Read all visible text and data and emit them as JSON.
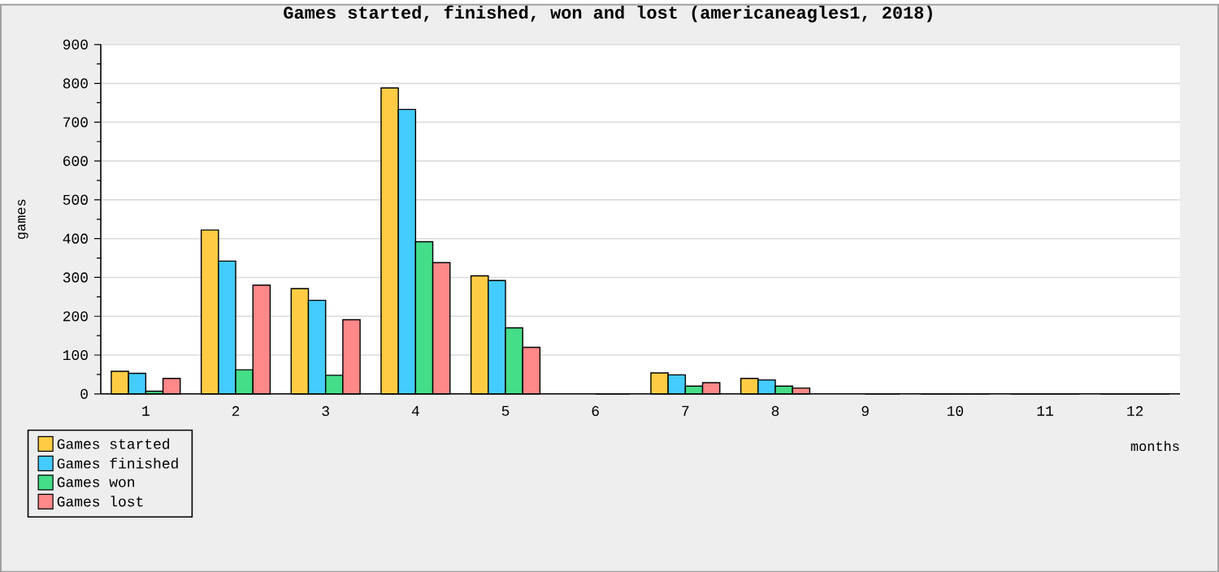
{
  "chart_data": {
    "type": "bar",
    "title": "Games started, finished, won and lost (americaneagles1, 2018)",
    "xlabel": "months",
    "ylabel": "games",
    "categories": [
      "1",
      "2",
      "3",
      "4",
      "5",
      "6",
      "7",
      "8",
      "9",
      "10",
      "11",
      "12"
    ],
    "series": [
      {
        "name": "Games started",
        "color": "#ffcc44",
        "values": [
          58,
          422,
          271,
          788,
          304,
          null,
          54,
          40,
          null,
          0,
          0,
          0
        ]
      },
      {
        "name": "Games finished",
        "color": "#44ccff",
        "values": [
          53,
          342,
          241,
          733,
          292,
          null,
          49,
          36,
          null,
          0,
          0,
          0
        ]
      },
      {
        "name": "Games won",
        "color": "#44dd88",
        "values": [
          7,
          62,
          48,
          392,
          170,
          0,
          20,
          20,
          0,
          0,
          0,
          0
        ]
      },
      {
        "name": "Games lost",
        "color": "#ff8888",
        "values": [
          40,
          280,
          191,
          338,
          120,
          0,
          29,
          15,
          0,
          0,
          0,
          0
        ]
      }
    ],
    "ylim": [
      0,
      900
    ],
    "yticks": [
      0,
      100,
      200,
      300,
      400,
      500,
      600,
      700,
      800,
      900
    ],
    "grid": "y",
    "legend": "bottom left"
  }
}
